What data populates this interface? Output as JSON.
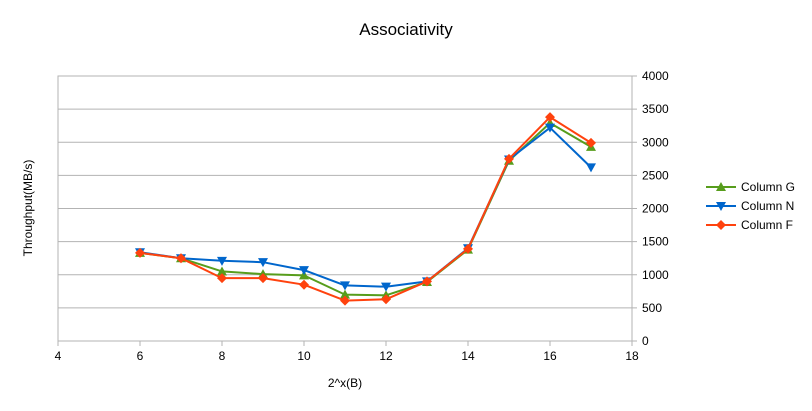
{
  "chart_data": {
    "type": "line",
    "title": "Associativity",
    "xlabel": "2^x(B)",
    "ylabel": "Throughput(MB/s)",
    "xlim": [
      4,
      18
    ],
    "ylim": [
      0,
      4000
    ],
    "x_ticks": [
      "4",
      "6",
      "8",
      "10",
      "12",
      "14",
      "16",
      "18"
    ],
    "y_ticks": [
      "0",
      "500",
      "1000",
      "1500",
      "2000",
      "2500",
      "3000",
      "3500",
      "4000"
    ],
    "grid": "horizontal",
    "legend_position": "right",
    "x": [
      6,
      7,
      8,
      9,
      10,
      11,
      12,
      13,
      14,
      15,
      16,
      17
    ],
    "series": [
      {
        "name": "Column G",
        "color": "#579d1c",
        "marker": "triangle-up",
        "values": [
          1330,
          1250,
          1050,
          1010,
          990,
          700,
          690,
          890,
          1380,
          2720,
          3290,
          2930
        ]
      },
      {
        "name": "Column N",
        "color": "#0066cc",
        "marker": "triangle-down",
        "values": [
          1340,
          1250,
          1210,
          1190,
          1070,
          840,
          820,
          900,
          1400,
          2740,
          3220,
          2620
        ]
      },
      {
        "name": "Column F",
        "color": "#ff420e",
        "marker": "diamond",
        "values": [
          1330,
          1250,
          950,
          950,
          850,
          610,
          630,
          900,
          1390,
          2750,
          3380,
          2990
        ]
      }
    ]
  }
}
